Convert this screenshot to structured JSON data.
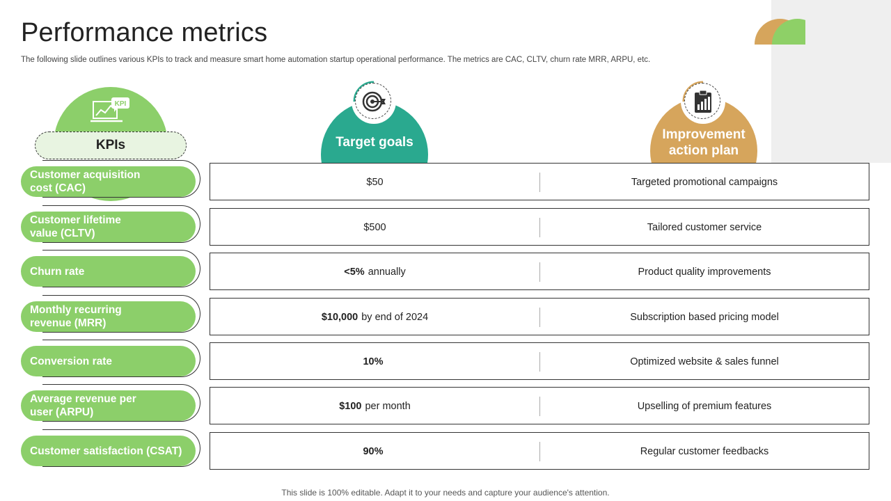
{
  "header": {
    "title": "Performance metrics",
    "subtitle": "The following slide outlines various KPIs to track and measure smart home automation startup operational performance. The metrics are CAC, CLTV, churn rate MRR, ARPU, etc."
  },
  "columns": {
    "kpis": "KPIs",
    "kpi_icon_text": "KPI",
    "target": "Target goals",
    "action_line1": "Improvement",
    "action_line2": "action plan"
  },
  "colors": {
    "green": "#8ccf6a",
    "teal": "#2aa98f",
    "orange": "#d6a55c"
  },
  "icons": {
    "kpi": "kpi-monitor-icon",
    "target": "target-dart-icon",
    "action": "clipboard-chart-icon"
  },
  "rows": [
    {
      "kpi_line1": "Customer acquisition",
      "kpi_line2": "cost (CAC)",
      "target_bold": "",
      "target_rest": "$50",
      "action": "Targeted promotional campaigns"
    },
    {
      "kpi_line1": "Customer lifetime",
      "kpi_line2": "value (CLTV)",
      "target_bold": "",
      "target_rest": "$500",
      "action": "Tailored customer service"
    },
    {
      "kpi_line1": "Churn rate",
      "kpi_line2": "",
      "target_bold": "<5%",
      "target_rest": "annually",
      "action": "Product quality improvements"
    },
    {
      "kpi_line1": "Monthly recurring",
      "kpi_line2": "revenue (MRR)",
      "target_bold": "$10,000",
      "target_rest": "by end of 2024",
      "action": "Subscription based pricing model"
    },
    {
      "kpi_line1": "Conversion rate",
      "kpi_line2": "",
      "target_bold": "10%",
      "target_rest": "",
      "action": "Optimized website & sales funnel"
    },
    {
      "kpi_line1": "Average revenue per",
      "kpi_line2": "user (ARPU)",
      "target_bold": "$100",
      "target_rest": "per month",
      "action": "Upselling of premium features"
    },
    {
      "kpi_line1": "Customer satisfaction (CSAT)",
      "kpi_line2": "",
      "target_bold": "90%",
      "target_rest": "",
      "action": "Regular customer feedbacks"
    }
  ],
  "footer": "This slide is 100% editable. Adapt it to your needs and capture your audience's attention."
}
